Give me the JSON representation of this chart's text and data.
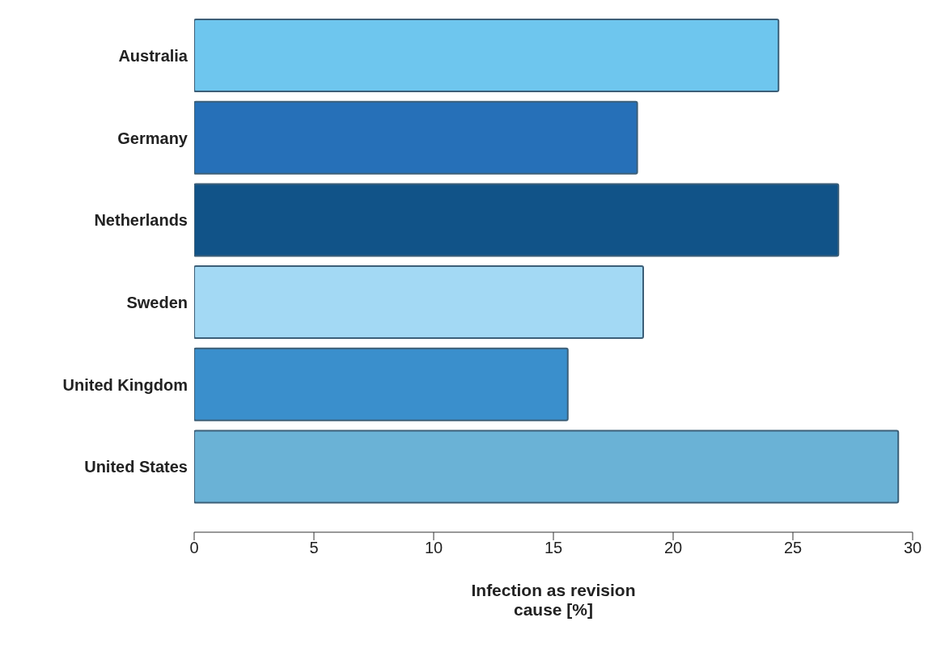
{
  "chart_data": {
    "type": "bar",
    "orientation": "horizontal",
    "xlabel": "Infection as revision cause [%]",
    "categories": [
      "Australia",
      "Germany",
      "Netherlands",
      "Sweden",
      "United Kingdom",
      "United States"
    ],
    "values": [
      24.4,
      18.5,
      26.9,
      18.75,
      15.6,
      29.4
    ],
    "colors": [
      "#6ec6ee",
      "#2670b8",
      "#115388",
      "#a3d9f4",
      "#3a8fcc",
      "#6ab2d6"
    ],
    "xlim": [
      0,
      30
    ],
    "xticks": [
      0,
      5,
      10,
      15,
      20,
      25,
      30
    ],
    "grid": false,
    "legend": false
  }
}
